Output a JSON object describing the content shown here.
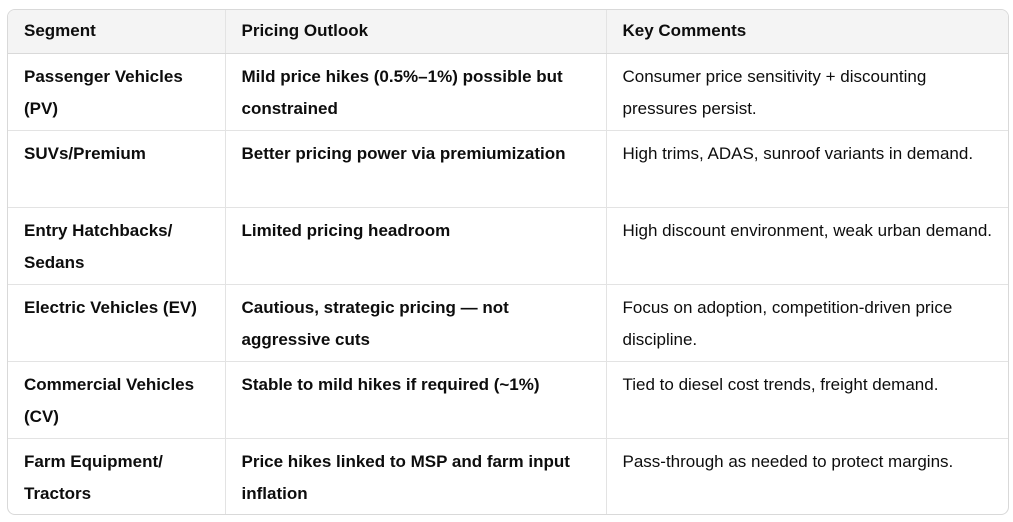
{
  "table": {
    "headers": [
      "Segment",
      "Pricing Outlook",
      "Key Comments"
    ],
    "rows": [
      {
        "segment": "Passenger Vehicles (PV)",
        "outlook": "Mild price hikes (0.5%–1%) possible but constrained",
        "comment": "Consumer price sensitivity + discounting pressures persist."
      },
      {
        "segment": "SUVs/Premium",
        "outlook": "Better pricing power via premiumization",
        "comment": "High trims, ADAS, sunroof variants in demand."
      },
      {
        "segment": "Entry Hatchbacks/ Sedans",
        "outlook": "Limited pricing headroom",
        "comment": "High discount environment, weak urban demand."
      },
      {
        "segment": "Electric Vehicles (EV)",
        "outlook": "Cautious, strategic pricing — not aggressive cuts",
        "comment": "Focus on adoption, competition-driven price discipline."
      },
      {
        "segment": "Commercial Vehicles (CV)",
        "outlook": "Stable to mild hikes if required (~1%)",
        "comment": "Tied to diesel cost trends, freight demand."
      },
      {
        "segment": "Farm Equipment/ Tractors",
        "outlook": "Price hikes linked to MSP and farm input inflation",
        "comment": "Pass-through as needed to protect margins."
      }
    ]
  }
}
